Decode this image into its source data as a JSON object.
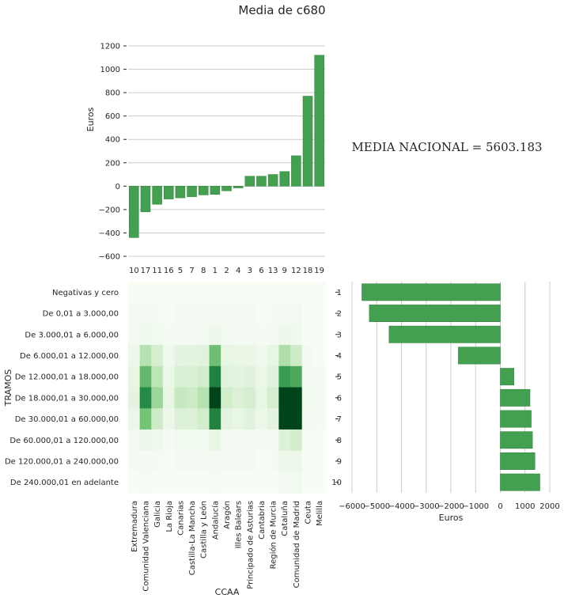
{
  "title": "Media de c680",
  "national_mean_text": "MEDIA NACIONAL = 5603.183",
  "colors": {
    "bar": "#43a050",
    "bar_edge": "#2f7d3c",
    "grid": "#cccccc",
    "heat_low": "#f7fcf5",
    "heat_high": "#00441b"
  },
  "chart_data": [
    {
      "type": "bar",
      "name_key": "top",
      "categories": [
        "10",
        "17",
        "11",
        "16",
        "5",
        "7",
        "8",
        "1",
        "2",
        "4",
        "3",
        "6",
        "13",
        "9",
        "12",
        "18",
        "19"
      ],
      "values": [
        -440,
        -220,
        -155,
        -110,
        -100,
        -90,
        -75,
        -70,
        -40,
        -15,
        85,
        85,
        100,
        125,
        260,
        770,
        1120
      ],
      "xlabel": "",
      "ylabel": "Euros",
      "ylim": [
        -600,
        1200
      ],
      "yticks": [
        -600,
        -400,
        -200,
        0,
        200,
        400,
        600,
        800,
        1000,
        1200
      ],
      "grid": "horizontal"
    },
    {
      "type": "heatmap",
      "name_key": "heat",
      "rows": [
        "Negativas y cero",
        "De 0,01 a 3.000,00",
        "De 3.000,01 a 6.000,00",
        "De 6.000,01 a 12.000,00",
        "De 12.000,01 a 18.000,00",
        "De 18.000,01 a 30.000,00",
        "De 30.000,01 a 60.000,00",
        "De 60.000,01 a 120.000,00",
        "De 120.000,01 a 240.000,00",
        "De 240.000,01 en adelante"
      ],
      "columns": [
        "Extremadura",
        "Comunidad Valenciana",
        "Galicia",
        "La Rioja",
        "Canarias",
        "Castilla-La Mancha",
        "Castilla y León",
        "Andalucía",
        "Aragón",
        "Illes Balears",
        "Principado de Asturias",
        "Cantabria",
        "Región de Murcia",
        "Cataluña",
        "Comunidad de Madrid",
        "Ceuta",
        "Melilla"
      ],
      "values": [
        [
          0,
          0,
          0,
          0,
          0,
          0,
          0,
          0,
          0,
          0,
          0,
          0,
          0,
          0,
          0,
          0,
          0
        ],
        [
          0.01,
          0.02,
          0.01,
          0,
          0.01,
          0.01,
          0.01,
          0.02,
          0.01,
          0.01,
          0.01,
          0,
          0.01,
          0.02,
          0.02,
          0,
          0
        ],
        [
          0.02,
          0.04,
          0.03,
          0.01,
          0.02,
          0.02,
          0.02,
          0.05,
          0.02,
          0.02,
          0.02,
          0.01,
          0.02,
          0.05,
          0.04,
          0,
          0
        ],
        [
          0.05,
          0.3,
          0.18,
          0.04,
          0.1,
          0.1,
          0.12,
          0.52,
          0.08,
          0.07,
          0.07,
          0.04,
          0.08,
          0.32,
          0.22,
          0.02,
          0
        ],
        [
          0.08,
          0.55,
          0.28,
          0.06,
          0.16,
          0.15,
          0.2,
          0.78,
          0.12,
          0.1,
          0.12,
          0.06,
          0.12,
          0.68,
          0.62,
          0.02,
          0.01
        ],
        [
          0.1,
          0.75,
          0.38,
          0.08,
          0.25,
          0.22,
          0.3,
          1.0,
          0.2,
          0.14,
          0.18,
          0.08,
          0.18,
          1.0,
          1.0,
          0.03,
          0.02
        ],
        [
          0.06,
          0.5,
          0.22,
          0.05,
          0.14,
          0.14,
          0.2,
          0.78,
          0.1,
          0.08,
          0.12,
          0.05,
          0.1,
          1.0,
          1.0,
          0.02,
          0.01
        ],
        [
          0.02,
          0.06,
          0.04,
          0.01,
          0.03,
          0.02,
          0.03,
          0.08,
          0.02,
          0.02,
          0.02,
          0.01,
          0.02,
          0.14,
          0.2,
          0,
          0
        ],
        [
          0.01,
          0.02,
          0.01,
          0,
          0.01,
          0.01,
          0.01,
          0.02,
          0.01,
          0.01,
          0.01,
          0,
          0.01,
          0.05,
          0.06,
          0,
          0
        ],
        [
          0,
          0.01,
          0,
          0,
          0,
          0,
          0,
          0.01,
          0,
          0,
          0,
          0,
          0,
          0.02,
          0.03,
          0,
          0
        ]
      ],
      "xlabel": "CCAA",
      "ylabel": "TRAMOS"
    },
    {
      "type": "bar",
      "orientation": "horizontal",
      "name_key": "right",
      "categories": [
        "1",
        "2",
        "3",
        "4",
        "5",
        "6",
        "7",
        "8",
        "9",
        "10"
      ],
      "values": [
        -5600,
        -5300,
        -4500,
        -1700,
        550,
        1200,
        1250,
        1300,
        1400,
        1600
      ],
      "xlabel": "Euros",
      "ylabel": "",
      "xlim": [
        -6000,
        2000
      ],
      "xticks": [
        -6000,
        -5000,
        -4000,
        -3000,
        -2000,
        -1000,
        0,
        1000,
        2000
      ],
      "grid": "vertical"
    }
  ]
}
